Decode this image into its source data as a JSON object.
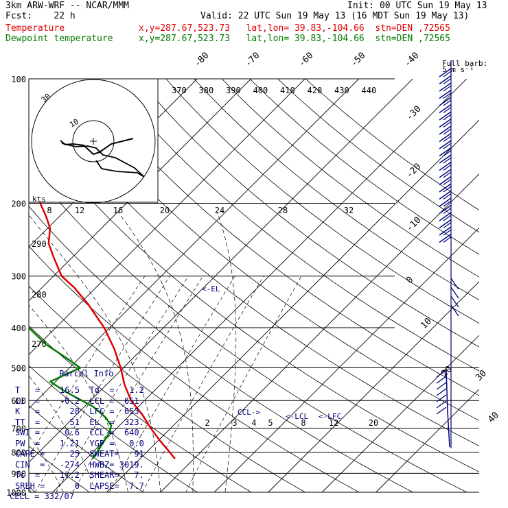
{
  "header": {
    "model": "3km ARW-WRF -- NCAR/MMM",
    "init": "Init: 00 UTC Sun 19 May 13",
    "fcst": "Fcst:    22 h",
    "valid": "Valid: 22 UTC Sun 19 May 13 (16 MDT Sun 19 May 13)",
    "temp_label": "Temperature",
    "temp_info": "x,y=287.67,523.73   lat,lon= 39.83,-104.66  stn=DEN ,72565",
    "dew_label": "Dewpoint temperature",
    "dew_info": "x,y=287.67,523.73   lat,lon= 39.83,-104.66  stn=DEN ,72565"
  },
  "colors": {
    "temperature": "#e00000",
    "dewpoint": "#007a00",
    "wind_barbs": "#00007a",
    "annotation": "#00007a",
    "grid": "#000000"
  },
  "barb_legend": {
    "line1": "Full barb:",
    "line2": "5 m s⁻¹"
  },
  "hodograph": {
    "units_label": "kts",
    "ring_labels": [
      "10",
      "30"
    ]
  },
  "annotations": {
    "el": "<-EL",
    "ccl": "CCL->",
    "lcl": "<-LCL",
    "lfc": "<-LFC"
  },
  "parcel_info": {
    "title": "Parcel Info",
    "rows": [
      "T   =    16.5  Td  =   1.2",
      "LI  =    -0.2  LCL =  651.",
      "K   =      28  LFC =  653.",
      "TT  =      51  EL  =  323.",
      "SWI =     0.6  CCL =  640.",
      "PW  =    1.21  YGP =   0.0",
      "CAPE =     25  SWEAT=   91",
      "CIN  =   -274  HWBZ= 3019.",
      "Tc  =    17.2  SHEAR=   7.",
      "SREH =      0  LAPSE=  7.7",
      "CELL = 332/07"
    ]
  },
  "chart_data": {
    "type": "line",
    "title": "",
    "xlabel": "",
    "ylabel": "",
    "y_scale": "log-pressure",
    "y_axis_pressure_hpa": [
      100,
      200,
      300,
      400,
      500,
      600,
      700,
      800,
      900,
      1000
    ],
    "isotherm_labels_c": [
      -80,
      -70,
      -60,
      -50,
      -40,
      -30,
      -20,
      -10,
      0,
      10,
      20,
      30,
      40
    ],
    "dry_adiabat_labels_k": [
      370,
      380,
      390,
      400,
      410,
      420,
      430,
      440
    ],
    "dry_adiabat_lower_labels_k": [
      290,
      280,
      270
    ],
    "mixing_ratio_top_labels": [
      8,
      12,
      16,
      20,
      24,
      28,
      32
    ],
    "mixing_ratio_lower_labels": [
      2,
      3,
      4,
      5,
      8,
      12,
      20
    ],
    "series": [
      {
        "name": "Temperature",
        "color": "#e00000",
        "points": [
          {
            "p": 830,
            "t": 16.5
          },
          {
            "p": 790,
            "t": 13.5
          },
          {
            "p": 750,
            "t": 10.3
          },
          {
            "p": 700,
            "t": 6.3
          },
          {
            "p": 650,
            "t": 2.3
          },
          {
            "p": 600,
            "t": -2.5
          },
          {
            "p": 550,
            "t": -6.6
          },
          {
            "p": 500,
            "t": -10.5
          },
          {
            "p": 450,
            "t": -15.2
          },
          {
            "p": 400,
            "t": -21.0
          },
          {
            "p": 350,
            "t": -28.5
          },
          {
            "p": 320,
            "t": -34.0
          },
          {
            "p": 300,
            "t": -38.5
          },
          {
            "p": 270,
            "t": -43.5
          },
          {
            "p": 250,
            "t": -47.0
          },
          {
            "p": 230,
            "t": -49.5
          },
          {
            "p": 215,
            "t": -52.5
          },
          {
            "p": 200,
            "t": -56.0
          },
          {
            "p": 180,
            "t": -59.0
          },
          {
            "p": 160,
            "t": -62.5
          },
          {
            "p": 140,
            "t": -66.5
          },
          {
            "p": 120,
            "t": -70.5
          },
          {
            "p": 100,
            "t": -75.5
          }
        ]
      },
      {
        "name": "Dewpoint temperature",
        "color": "#007a00",
        "points": [
          {
            "p": 830,
            "t": 1.2
          },
          {
            "p": 780,
            "t": 0.5
          },
          {
            "p": 720,
            "t": -0.5
          },
          {
            "p": 690,
            "t": -1.5
          },
          {
            "p": 660,
            "t": -4.0
          },
          {
            "p": 620,
            "t": -8.5
          },
          {
            "p": 570,
            "t": -16.5
          },
          {
            "p": 540,
            "t": -21.0
          },
          {
            "p": 500,
            "t": -18.0
          },
          {
            "p": 470,
            "t": -23.0
          },
          {
            "p": 440,
            "t": -28.5
          },
          {
            "p": 400,
            "t": -35.0
          },
          {
            "p": 370,
            "t": -39.0
          },
          {
            "p": 340,
            "t": -43.5
          },
          {
            "p": 310,
            "t": -48.5
          },
          {
            "p": 280,
            "t": -53.0
          },
          {
            "p": 250,
            "t": -58.0
          },
          {
            "p": 220,
            "t": -64.0
          },
          {
            "p": 205,
            "t": -66.0
          },
          {
            "p": 190,
            "t": -69.0
          },
          {
            "p": 160,
            "t": -72.5
          },
          {
            "p": 140,
            "t": -76.0
          },
          {
            "p": 120,
            "t": -80.5
          },
          {
            "p": 100,
            "t": -85.0
          }
        ]
      }
    ]
  }
}
